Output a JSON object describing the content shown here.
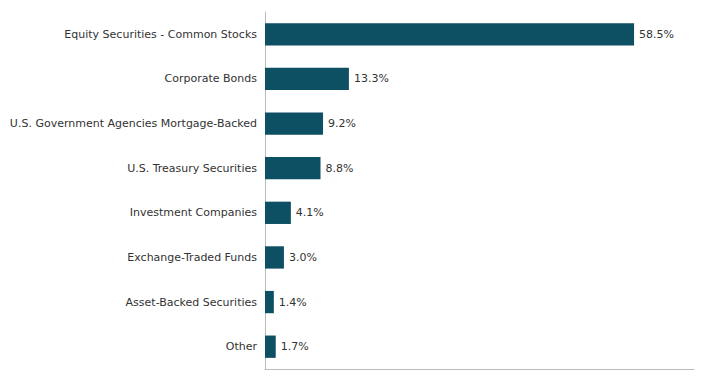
{
  "chart_data": {
    "type": "bar",
    "orientation": "horizontal",
    "categories": [
      "Equity Securities - Common Stocks",
      "Corporate Bonds",
      "U.S. Government Agencies Mortgage-Backed",
      "U.S. Treasury Securities",
      "Investment Companies",
      "Exchange-Traded Funds",
      "Asset-Backed Securities",
      "Other"
    ],
    "values": [
      58.5,
      13.3,
      9.2,
      8.8,
      4.1,
      3.0,
      1.4,
      1.7
    ],
    "value_labels": [
      "58.5%",
      "13.3%",
      "9.2%",
      "8.8%",
      "4.1%",
      "3.0%",
      "1.4%",
      "1.7%"
    ],
    "data_labels": true,
    "color": "#0d4f63",
    "xlim": [
      0,
      68
    ],
    "tick_labels": "y",
    "grid": false
  }
}
